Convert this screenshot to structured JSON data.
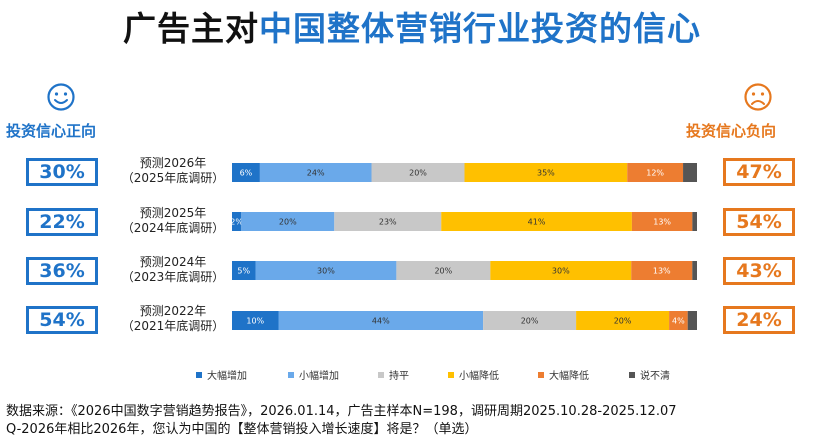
{
  "title": {
    "part1": "广告主对",
    "part2": "中国整体营销行业投资的信心"
  },
  "positive": {
    "label": "投资信心正向",
    "icon": "smiley-face-icon"
  },
  "negative": {
    "label": "投资信心负向",
    "icon": "frowning-face-icon"
  },
  "colors": {
    "blue_dark": "#1f73c8",
    "blue_light": "#6aa9ea",
    "gray": "#c8c8c8",
    "yellow": "#ffc000",
    "orange": "#ed7d31",
    "dark": "#555555"
  },
  "chart_data": {
    "type": "bar",
    "stacked": true,
    "orientation": "horizontal",
    "categories": [
      {
        "line1": "预测2026年",
        "line2": "（2025年底调研）"
      },
      {
        "line1": "预测2025年",
        "line2": "（2024年底调研）"
      },
      {
        "line1": "预测2024年",
        "line2": "（2023年底调研）"
      },
      {
        "line1": "预测2022年",
        "line2": "（2021年底调研）"
      }
    ],
    "positive_totals": [
      "30%",
      "22%",
      "36%",
      "54%"
    ],
    "negative_totals": [
      "47%",
      "54%",
      "43%",
      "24%"
    ],
    "series": [
      {
        "name": "大幅增加",
        "color": "#1f73c8",
        "text_color": "#ffffff",
        "values": [
          6,
          2,
          5,
          10
        ],
        "labels": [
          "6%",
          "2%",
          "5%",
          "10%"
        ]
      },
      {
        "name": "小幅增加",
        "color": "#6aa9ea",
        "text_color": "#333333",
        "values": [
          24,
          20,
          30,
          44
        ],
        "labels": [
          "24%",
          "20%",
          "30%",
          "44%"
        ]
      },
      {
        "name": "持平",
        "color": "#c8c8c8",
        "text_color": "#333333",
        "values": [
          20,
          23,
          20,
          20
        ],
        "labels": [
          "20%",
          "23%",
          "20%",
          "20%"
        ]
      },
      {
        "name": "小幅降低",
        "color": "#ffc000",
        "text_color": "#333333",
        "values": [
          35,
          41,
          30,
          20
        ],
        "labels": [
          "35%",
          "41%",
          "30%",
          "20%"
        ]
      },
      {
        "name": "大幅降低",
        "color": "#ed7d31",
        "text_color": "#ffffff",
        "values": [
          12,
          13,
          13,
          4
        ],
        "labels": [
          "12%",
          "13%",
          "13%",
          "4%"
        ]
      },
      {
        "name": "说不清",
        "color": "#555555",
        "text_color": "#ffffff",
        "values": [
          3,
          1,
          1,
          2
        ],
        "labels": [
          "",
          "",
          "",
          ""
        ]
      }
    ],
    "legend": "bottom"
  },
  "footer": {
    "source": "数据来源：《2026中国数字营销趋势报告》，2026.01.14，广告主样本N=198，调研周期2025.10.28-2025.12.07",
    "question": "Q-2026年相比2026年，您认为中国的【整体营销投入增长速度】将是？（单选）"
  }
}
